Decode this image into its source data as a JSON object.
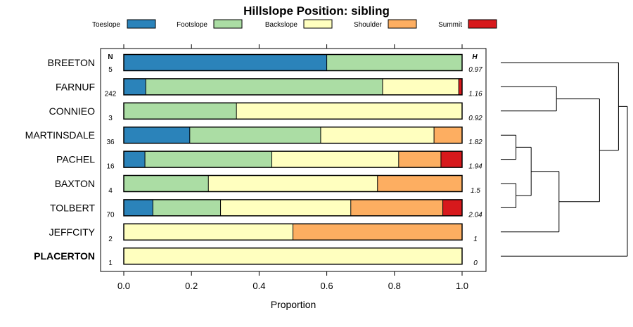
{
  "chart_data": {
    "type": "bar",
    "subtype": "stacked-horizontal-proportion",
    "title": "Hillslope Position: sibling",
    "xlabel": "Proportion",
    "ylabel": "",
    "xlim": [
      0,
      1
    ],
    "x_ticks": [
      "0.0",
      "0.2",
      "0.4",
      "0.6",
      "0.8",
      "1.0"
    ],
    "n_header": "N",
    "h_header": "H",
    "highlight_category": "PLACERTON",
    "legend_position": "top",
    "series": [
      {
        "name": "Toeslope",
        "color": "#2b83ba"
      },
      {
        "name": "Footslope",
        "color": "#abdda4"
      },
      {
        "name": "Backslope",
        "color": "#ffffbf"
      },
      {
        "name": "Shoulder",
        "color": "#fdae61"
      },
      {
        "name": "Summit",
        "color": "#d7191c"
      }
    ],
    "categories": [
      "BREETON",
      "FARNUF",
      "CONNIEO",
      "MARTINSDALE",
      "PACHEL",
      "BAXTON",
      "TOLBERT",
      "JEFFCITY",
      "PLACERTON"
    ],
    "n": [
      "5",
      "242",
      "3",
      "36",
      "16",
      "4",
      "70",
      "2",
      "1"
    ],
    "h": [
      "0.97",
      "1.16",
      "0.92",
      "1.82",
      "1.94",
      "1.5",
      "2.04",
      "1",
      "0"
    ],
    "proportions": [
      [
        0.6,
        0.4,
        0.0,
        0.0,
        0.0
      ],
      [
        0.065,
        0.7,
        0.225,
        0.0,
        0.01
      ],
      [
        0.0,
        0.333,
        0.667,
        0.0,
        0.0
      ],
      [
        0.195,
        0.387,
        0.335,
        0.083,
        0.0
      ],
      [
        0.0625,
        0.375,
        0.375,
        0.125,
        0.0625
      ],
      [
        0.0,
        0.25,
        0.5,
        0.25,
        0.0
      ],
      [
        0.086,
        0.2,
        0.385,
        0.272,
        0.057
      ],
      [
        0.0,
        0.0,
        0.5,
        0.5,
        0.0
      ],
      [
        0.0,
        0.0,
        1.0,
        0.0,
        0.0
      ]
    ],
    "dendrogram": {
      "description": "hierarchical clustering of categories by composition",
      "leaf_order": [
        "BREETON",
        "FARNUF",
        "CONNIEO",
        "MARTINSDALE",
        "PACHEL",
        "BAXTON",
        "TOLBERT",
        "JEFFCITY",
        "PLACERTON"
      ],
      "merges": [
        {
          "a": "MARTINSDALE",
          "b": "PACHEL",
          "height": 0.12
        },
        {
          "a": "BAXTON",
          "b": "TOLBERT",
          "height": 0.12
        },
        {
          "a": "MARTINSDALE+PACHEL",
          "b": "BAXTON+TOLBERT",
          "height": 0.24
        },
        {
          "a": "FARNUF",
          "b": "CONNIEO",
          "height": 0.44
        },
        {
          "a": "MARTINSDALE+PACHEL+BAXTON+TOLBERT",
          "b": "JEFFCITY",
          "height": 0.46
        },
        {
          "a": "FARNUF+CONNIEO",
          "b": "MARTINSDALE+PACHEL+BAXTON+TOLBERT+JEFFCITY",
          "height": 0.78
        },
        {
          "a": "BREETON",
          "b": "FARNUF+CONNIEO+MARTINSDALE+PACHEL+BAXTON+TOLBERT+JEFFCITY",
          "height": 0.93
        },
        {
          "a": "BREETON+FARNUF+CONNIEO+MARTINSDALE+PACHEL+BAXTON+TOLBERT+JEFFCITY",
          "b": "PLACERTON",
          "height": 1.0
        }
      ]
    }
  }
}
